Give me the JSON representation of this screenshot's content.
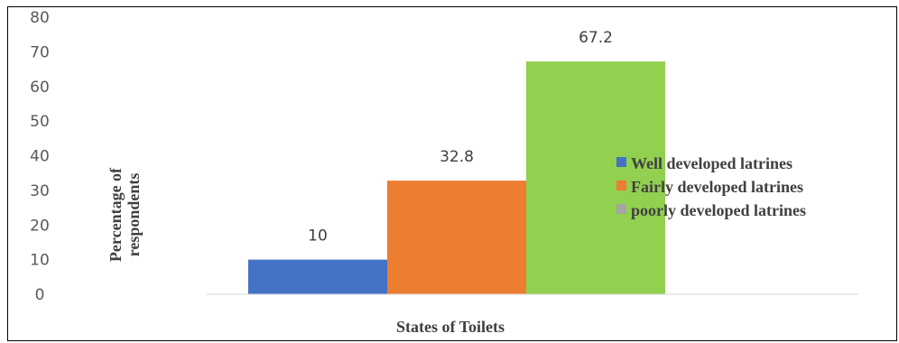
{
  "chart_data": {
    "type": "bar",
    "title": "",
    "xlabel": "States of Toilets",
    "ylabel": [
      "Percentage of",
      "respondents"
    ],
    "ylim": [
      0,
      80
    ],
    "ytick_step": 10,
    "yticks": [
      "0",
      "10",
      "20",
      "30",
      "40",
      "50",
      "60",
      "70",
      "80"
    ],
    "grid": false,
    "legend_position": "right",
    "series": [
      {
        "name": "Well developed latrines",
        "value": 10,
        "label": "10",
        "color": "#4472C4"
      },
      {
        "name": "Fairly developed latrines",
        "value": 32.8,
        "label": "32.8",
        "color": "#ED7D31"
      },
      {
        "name": "poorly developed latrines",
        "value": 67.2,
        "label": "67.2",
        "color": "#92D050"
      }
    ],
    "legend_marker_colors": [
      "#4472C4",
      "#ED7D31",
      "#A5A5A5"
    ]
  }
}
